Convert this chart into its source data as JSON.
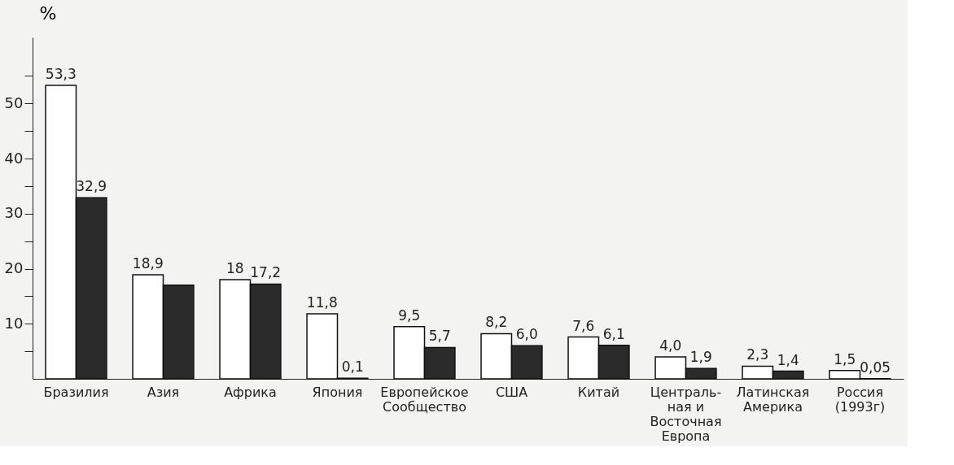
{
  "chart_data": {
    "type": "bar",
    "ylabel": "%",
    "categories": [
      "Бразилия",
      "Азия",
      "Африка",
      "Япония",
      "Европейское\nСообщество",
      "США",
      "Китай",
      "Централь-\nная и\nВосточная\nЕвропа",
      "Латинская\nАмерика",
      "Россия\n(1993г)"
    ],
    "series": [
      {
        "color": "#ffffff",
        "values": [
          53.3,
          18.9,
          18,
          11.8,
          9.5,
          8.2,
          7.6,
          4.0,
          2.3,
          1.5
        ],
        "value_labels": [
          "53,3",
          "18,9",
          "18",
          "11,8",
          "9,5",
          "8,2",
          "7,6",
          "4,0",
          "2,3",
          "1,5"
        ]
      },
      {
        "color": "#2b2b2b",
        "values": [
          32.9,
          17,
          17.2,
          0.1,
          5.7,
          6.0,
          6.1,
          1.9,
          1.4,
          0.05
        ],
        "value_labels": [
          "32,9",
          null,
          "17,2",
          "0,1",
          "5,7",
          "6,0",
          "6,1",
          "1,9",
          "1,4",
          "0,05"
        ]
      }
    ],
    "ylim": [
      0,
      62
    ],
    "yticks": [
      {
        "value": 5,
        "label": null
      },
      10,
      {
        "value": 15,
        "label": null
      },
      20,
      {
        "value": 25,
        "label": null
      },
      30,
      {
        "value": 35,
        "label": null
      },
      40,
      {
        "value": 45,
        "label": null
      },
      50,
      {
        "value": 55,
        "label": null
      }
    ],
    "grid": false,
    "legend": false
  }
}
